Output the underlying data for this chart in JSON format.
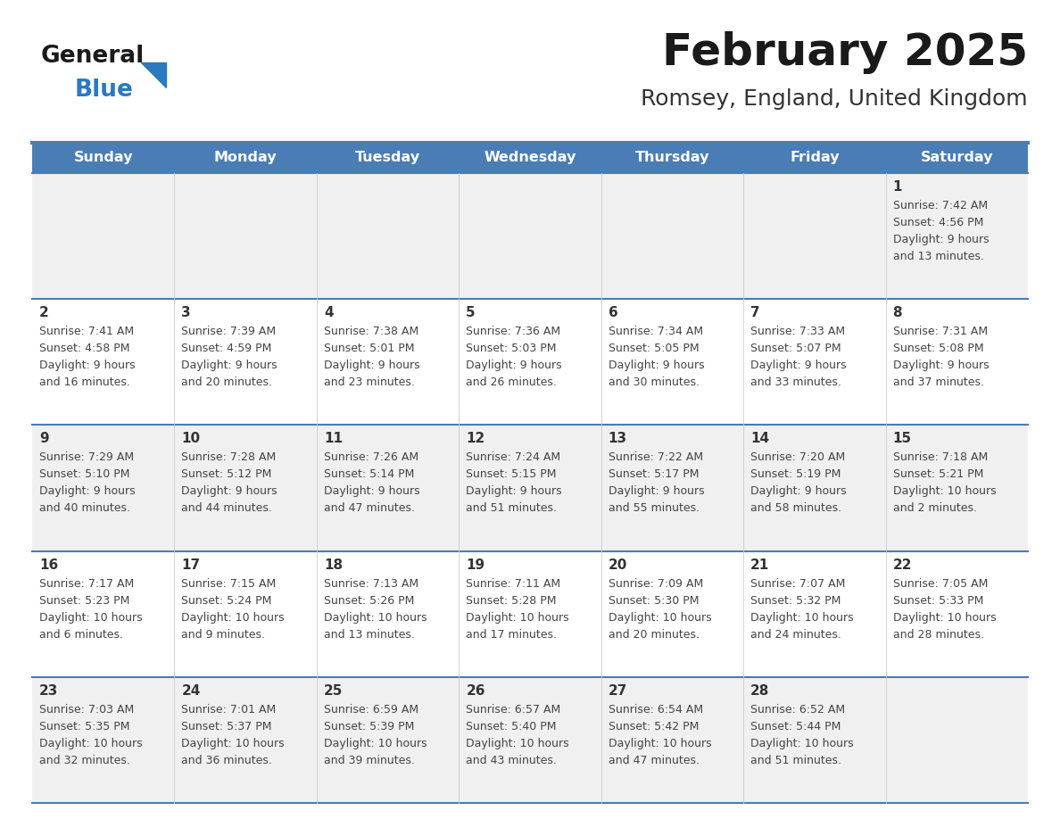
{
  "title": "February 2025",
  "subtitle": "Romsey, England, United Kingdom",
  "days_of_week": [
    "Sunday",
    "Monday",
    "Tuesday",
    "Wednesday",
    "Thursday",
    "Friday",
    "Saturday"
  ],
  "header_bg": "#4a7db5",
  "header_text": "#ffffff",
  "row_bg_odd": "#f0f0f0",
  "row_bg_even": "#ffffff",
  "border_color": "#4a7db5",
  "day_number_color": "#333333",
  "text_color": "#444444",
  "title_color": "#1a1a1a",
  "subtitle_color": "#333333",
  "logo_general_color": "#1a1a1a",
  "logo_blue_color": "#2a7abf",
  "cell_line_color": "#4a7db5",
  "calendar_data": [
    [
      {
        "day": null,
        "info": null
      },
      {
        "day": null,
        "info": null
      },
      {
        "day": null,
        "info": null
      },
      {
        "day": null,
        "info": null
      },
      {
        "day": null,
        "info": null
      },
      {
        "day": null,
        "info": null
      },
      {
        "day": 1,
        "info": "Sunrise: 7:42 AM\nSunset: 4:56 PM\nDaylight: 9 hours\nand 13 minutes."
      }
    ],
    [
      {
        "day": 2,
        "info": "Sunrise: 7:41 AM\nSunset: 4:58 PM\nDaylight: 9 hours\nand 16 minutes."
      },
      {
        "day": 3,
        "info": "Sunrise: 7:39 AM\nSunset: 4:59 PM\nDaylight: 9 hours\nand 20 minutes."
      },
      {
        "day": 4,
        "info": "Sunrise: 7:38 AM\nSunset: 5:01 PM\nDaylight: 9 hours\nand 23 minutes."
      },
      {
        "day": 5,
        "info": "Sunrise: 7:36 AM\nSunset: 5:03 PM\nDaylight: 9 hours\nand 26 minutes."
      },
      {
        "day": 6,
        "info": "Sunrise: 7:34 AM\nSunset: 5:05 PM\nDaylight: 9 hours\nand 30 minutes."
      },
      {
        "day": 7,
        "info": "Sunrise: 7:33 AM\nSunset: 5:07 PM\nDaylight: 9 hours\nand 33 minutes."
      },
      {
        "day": 8,
        "info": "Sunrise: 7:31 AM\nSunset: 5:08 PM\nDaylight: 9 hours\nand 37 minutes."
      }
    ],
    [
      {
        "day": 9,
        "info": "Sunrise: 7:29 AM\nSunset: 5:10 PM\nDaylight: 9 hours\nand 40 minutes."
      },
      {
        "day": 10,
        "info": "Sunrise: 7:28 AM\nSunset: 5:12 PM\nDaylight: 9 hours\nand 44 minutes."
      },
      {
        "day": 11,
        "info": "Sunrise: 7:26 AM\nSunset: 5:14 PM\nDaylight: 9 hours\nand 47 minutes."
      },
      {
        "day": 12,
        "info": "Sunrise: 7:24 AM\nSunset: 5:15 PM\nDaylight: 9 hours\nand 51 minutes."
      },
      {
        "day": 13,
        "info": "Sunrise: 7:22 AM\nSunset: 5:17 PM\nDaylight: 9 hours\nand 55 minutes."
      },
      {
        "day": 14,
        "info": "Sunrise: 7:20 AM\nSunset: 5:19 PM\nDaylight: 9 hours\nand 58 minutes."
      },
      {
        "day": 15,
        "info": "Sunrise: 7:18 AM\nSunset: 5:21 PM\nDaylight: 10 hours\nand 2 minutes."
      }
    ],
    [
      {
        "day": 16,
        "info": "Sunrise: 7:17 AM\nSunset: 5:23 PM\nDaylight: 10 hours\nand 6 minutes."
      },
      {
        "day": 17,
        "info": "Sunrise: 7:15 AM\nSunset: 5:24 PM\nDaylight: 10 hours\nand 9 minutes."
      },
      {
        "day": 18,
        "info": "Sunrise: 7:13 AM\nSunset: 5:26 PM\nDaylight: 10 hours\nand 13 minutes."
      },
      {
        "day": 19,
        "info": "Sunrise: 7:11 AM\nSunset: 5:28 PM\nDaylight: 10 hours\nand 17 minutes."
      },
      {
        "day": 20,
        "info": "Sunrise: 7:09 AM\nSunset: 5:30 PM\nDaylight: 10 hours\nand 20 minutes."
      },
      {
        "day": 21,
        "info": "Sunrise: 7:07 AM\nSunset: 5:32 PM\nDaylight: 10 hours\nand 24 minutes."
      },
      {
        "day": 22,
        "info": "Sunrise: 7:05 AM\nSunset: 5:33 PM\nDaylight: 10 hours\nand 28 minutes."
      }
    ],
    [
      {
        "day": 23,
        "info": "Sunrise: 7:03 AM\nSunset: 5:35 PM\nDaylight: 10 hours\nand 32 minutes."
      },
      {
        "day": 24,
        "info": "Sunrise: 7:01 AM\nSunset: 5:37 PM\nDaylight: 10 hours\nand 36 minutes."
      },
      {
        "day": 25,
        "info": "Sunrise: 6:59 AM\nSunset: 5:39 PM\nDaylight: 10 hours\nand 39 minutes."
      },
      {
        "day": 26,
        "info": "Sunrise: 6:57 AM\nSunset: 5:40 PM\nDaylight: 10 hours\nand 43 minutes."
      },
      {
        "day": 27,
        "info": "Sunrise: 6:54 AM\nSunset: 5:42 PM\nDaylight: 10 hours\nand 47 minutes."
      },
      {
        "day": 28,
        "info": "Sunrise: 6:52 AM\nSunset: 5:44 PM\nDaylight: 10 hours\nand 51 minutes."
      },
      {
        "day": null,
        "info": null
      }
    ]
  ]
}
